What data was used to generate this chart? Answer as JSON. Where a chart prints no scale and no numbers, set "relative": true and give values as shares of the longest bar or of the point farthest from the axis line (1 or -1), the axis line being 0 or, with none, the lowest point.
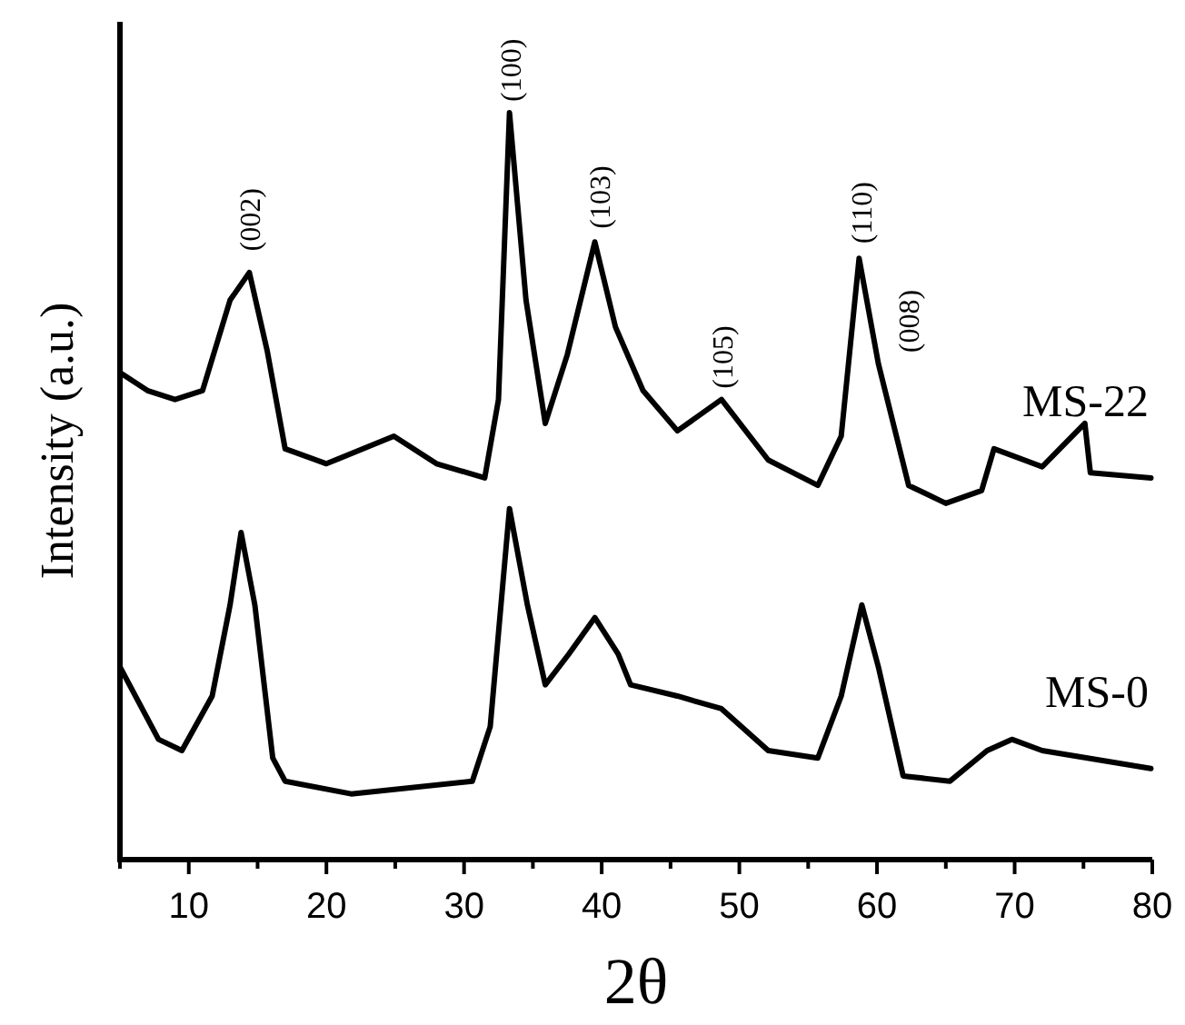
{
  "chart_data": {
    "type": "line",
    "relative": true,
    "xlabel": "2θ",
    "ylabel": "Intensity (a.u.)",
    "xlim": [
      5,
      80
    ],
    "xticks": [
      {
        "value": 5,
        "label": null
      },
      10,
      {
        "value": 15,
        "label": null
      },
      20,
      {
        "value": 25,
        "label": null
      },
      30,
      {
        "value": 35,
        "label": null
      },
      40,
      {
        "value": 45,
        "label": null
      },
      50,
      {
        "value": 55,
        "label": null
      },
      60,
      {
        "value": 65,
        "label": null
      },
      70,
      {
        "value": 75,
        "label": null
      },
      80
    ],
    "grid": false,
    "legend": false,
    "marker": "none",
    "line_style": "solid",
    "series": [
      {
        "name": "MS-22",
        "color": "#000000",
        "x": [
          5,
          7,
          9,
          11,
          13,
          14.4,
          15.7,
          17,
          20,
          24.9,
          28,
          31.5,
          32.5,
          33.3,
          34.5,
          35.9,
          37.5,
          39.5,
          41,
          43,
          45.5,
          48.7,
          52.1,
          55.7,
          57.4,
          58.7,
          60.1,
          62.3,
          65,
          67.6,
          68.5,
          72,
          75.1,
          75.5,
          79.9
        ],
        "values": [
          0.652,
          0.628,
          0.616,
          0.628,
          0.749,
          0.786,
          0.681,
          0.55,
          0.53,
          0.567,
          0.53,
          0.511,
          0.616,
          1,
          0.749,
          0.584,
          0.676,
          0.827,
          0.713,
          0.628,
          0.574,
          0.616,
          0.535,
          0.501,
          0.567,
          0.805,
          0.664,
          0.501,
          0.477,
          0.494,
          0.55,
          0.526,
          0.584,
          0.518,
          0.511
        ]
      },
      {
        "name": "MS-0",
        "color": "#000000",
        "x": [
          5,
          7.8,
          9.5,
          11.7,
          13,
          13.8,
          14.8,
          16.1,
          17,
          21.8,
          30.6,
          31.9,
          33.3,
          34.6,
          35.9,
          37.6,
          39.5,
          41.2,
          42.1,
          45.5,
          48.7,
          52.1,
          55.7,
          57.4,
          58.9,
          60.1,
          61.9,
          65.3,
          68,
          69.8,
          72,
          79.9
        ],
        "values": [
          0.258,
          0.161,
          0.146,
          0.219,
          0.341,
          0.438,
          0.341,
          0.136,
          0.105,
          0.088,
          0.105,
          0.178,
          0.47,
          0.341,
          0.234,
          0.275,
          0.324,
          0.275,
          0.234,
          0.219,
          0.202,
          0.146,
          0.136,
          0.219,
          0.341,
          0.258,
          0.112,
          0.105,
          0.146,
          0.161,
          0.146,
          0.122
        ]
      }
    ],
    "annotations": [
      {
        "text": "(002)",
        "x": 14.4,
        "y": 0.8
      },
      {
        "text": "(100)",
        "x": 33.3,
        "y": 1
      },
      {
        "text": "(103)",
        "x": 39.8,
        "y": 0.83
      },
      {
        "text": "(105)",
        "x": 48.7,
        "y": 0.616
      },
      {
        "text": "(110)",
        "x": 58.8,
        "y": 0.81
      },
      {
        "text": "(008)",
        "x": 60.1,
        "y": 0.664
      }
    ]
  }
}
